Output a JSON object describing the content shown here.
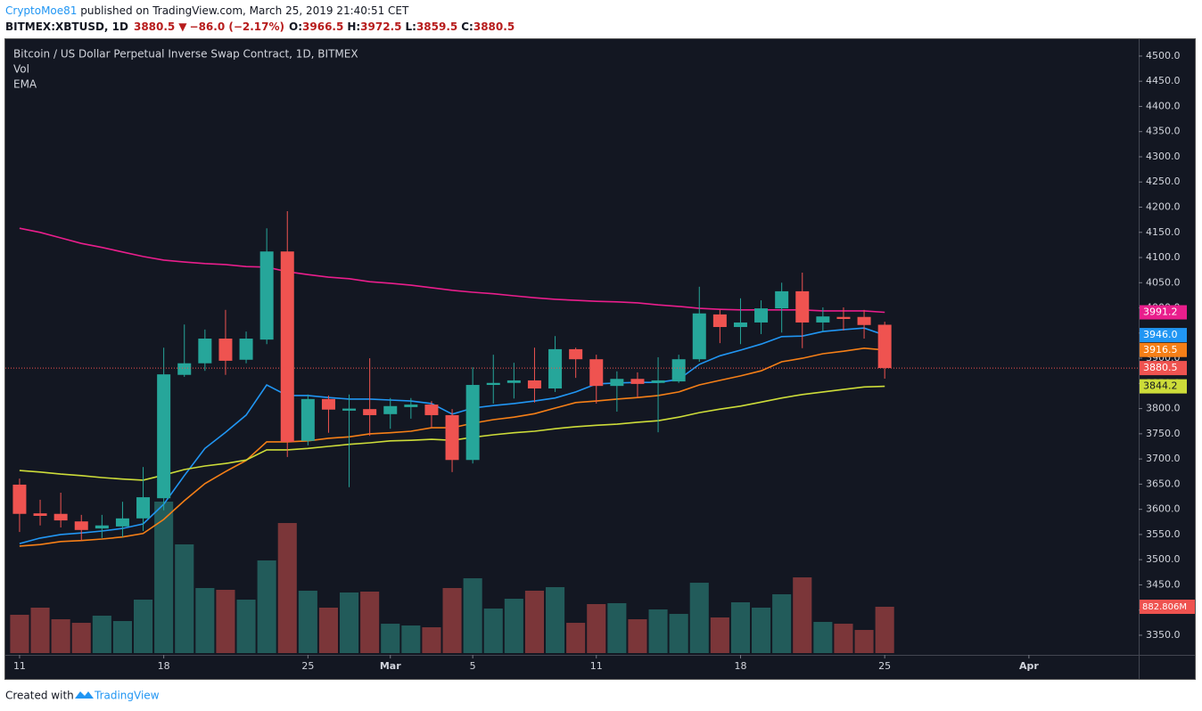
{
  "header": {
    "user": "CryptoMoe81",
    "published": " published on TradingView.com, March 25, 2019 21:40:51 CET",
    "symbol": "BITMEX:XBTUSD, 1D",
    "change": "−86.0 (−2.17%)",
    "o_label": "O:",
    "h_label": "H:",
    "l_label": "L:",
    "c_label": "C:"
  },
  "footer": {
    "created": "Created with",
    "brand": "TradingView"
  },
  "chart_data": {
    "type": "candlestick",
    "title": "Bitcoin / US Dollar Perpetual Inverse Swap Contract, 1D, BITMEX",
    "volume_label": "Vol",
    "ema_label": "EMA",
    "up_color": "#26a69a",
    "down_color": "#ef5350",
    "volume_up_color": "#225b5a",
    "volume_down_color": "#7b3639",
    "open": [
      3649,
      3592,
      3591,
      3576,
      3562,
      3566,
      3582,
      3622,
      3867,
      3890,
      3939,
      3897,
      3937,
      4112,
      3736,
      3819,
      3796,
      3799,
      3789,
      3803,
      3808,
      3787,
      3698,
      3847,
      3851,
      3856,
      3840,
      3918,
      3898,
      3845,
      3859,
      3851,
      3854,
      3898,
      3987,
      3962,
      3971,
      3999,
      4033,
      3971,
      3982,
      3982,
      3966.5
    ],
    "high": [
      3661,
      3619,
      3633,
      3589,
      3589,
      3615,
      3684,
      3921,
      3967,
      3957,
      3996,
      3953,
      4158,
      4192,
      3828,
      3826,
      3828,
      3900,
      3821,
      3821,
      3815,
      3799,
      3882,
      3907,
      3891,
      3921,
      3944,
      3921,
      3907,
      3874,
      3872,
      3902,
      3907,
      4042,
      3996,
      4019,
      4015,
      4050,
      4070,
      4001,
      4001,
      3996,
      3972.5
    ],
    "low": [
      3555,
      3568,
      3564,
      3538,
      3543,
      3545,
      3557,
      3598,
      3863,
      3875,
      3867,
      3890,
      3928,
      3704,
      3727,
      3752,
      3644,
      3746,
      3760,
      3780,
      3762,
      3674,
      3691,
      3810,
      3820,
      3812,
      3833,
      3861,
      3810,
      3794,
      3822,
      3753,
      3851,
      3893,
      3930,
      3928,
      3948,
      3951,
      3920,
      3953,
      3955,
      3939,
      3859.5
    ],
    "close": [
      3591,
      3587,
      3578,
      3559,
      3568,
      3582,
      3624,
      3868,
      3890,
      3939,
      3895,
      3939,
      4112,
      3734,
      3819,
      3798,
      3800,
      3787,
      3805,
      3808,
      3787,
      3698,
      3847,
      3851,
      3856,
      3840,
      3918,
      3898,
      3845,
      3859,
      3849,
      3856,
      3898,
      3989,
      3962,
      3971,
      3999,
      4033,
      3971,
      3983,
      3978,
      3966,
      3880.5
    ],
    "volume": [
      730,
      866,
      645,
      577,
      713,
      611,
      1019,
      2887,
      2072,
      1240,
      1206,
      1019,
      1766,
      2479,
      1189,
      866,
      1155,
      1172,
      560,
      526,
      492,
      1240,
      1426,
      849,
      1036,
      1189,
      1257,
      577,
      934,
      951,
      645,
      832,
      747,
      1341,
      679,
      968,
      866,
      1121,
      1443,
      594,
      560,
      441,
      882.806
    ],
    "volume_value_labels": [
      null,
      null,
      null,
      null,
      null,
      null,
      null,
      null,
      null,
      null,
      null,
      null,
      null,
      null,
      null,
      null,
      null,
      null,
      null,
      null,
      null,
      null,
      null,
      null,
      null,
      null,
      null,
      null,
      null,
      null,
      null,
      null,
      null,
      null,
      null,
      null,
      null,
      null,
      null,
      null,
      null,
      null,
      "882.806M"
    ],
    "ema_series": [
      {
        "color": "#e91e8c",
        "values": [
          4158,
          4150,
          4139,
          4128,
          4120,
          4111,
          4102,
          4095,
          4091,
          4088,
          4086,
          4082,
          4081,
          4072,
          4066,
          4061,
          4058,
          4052,
          4049,
          4045,
          4040,
          4035,
          4031,
          4028,
          4024,
          4020,
          4017,
          4015,
          4013,
          4012,
          4010,
          4006,
          4003,
          3999,
          3997,
          3996,
          3996,
          3996,
          3996,
          3994,
          3994,
          3994,
          3991.2
        ]
      },
      {
        "color": "#2196f3",
        "values": [
          3532,
          3543,
          3550,
          3553,
          3557,
          3562,
          3571,
          3610,
          3667,
          3721,
          3753,
          3787,
          3847,
          3826,
          3826,
          3822,
          3819,
          3819,
          3817,
          3815,
          3810,
          3789,
          3801,
          3806,
          3810,
          3815,
          3821,
          3833,
          3849,
          3851,
          3852,
          3852,
          3858,
          3888,
          3905,
          3916,
          3928,
          3943,
          3944,
          3953,
          3957,
          3960,
          3946
        ],
        "last_label": "3946.0"
      },
      {
        "color": "#f57f17",
        "values": [
          3527,
          3530,
          3536,
          3538,
          3541,
          3545,
          3552,
          3580,
          3617,
          3651,
          3675,
          3697,
          3734,
          3734,
          3736,
          3741,
          3744,
          3750,
          3752,
          3755,
          3762,
          3762,
          3771,
          3778,
          3783,
          3790,
          3801,
          3812,
          3815,
          3819,
          3822,
          3826,
          3833,
          3847,
          3856,
          3865,
          3875,
          3893,
          3900,
          3909,
          3914,
          3920,
          3916.5
        ]
      },
      {
        "color": "#cddc39",
        "values": [
          3677,
          3674,
          3670,
          3667,
          3663,
          3660,
          3658,
          3668,
          3679,
          3686,
          3691,
          3698,
          3718,
          3718,
          3721,
          3725,
          3729,
          3732,
          3736,
          3737,
          3739,
          3737,
          3743,
          3748,
          3752,
          3755,
          3760,
          3764,
          3767,
          3769,
          3773,
          3776,
          3783,
          3792,
          3799,
          3805,
          3813,
          3821,
          3828,
          3833,
          3838,
          3843,
          3844.2
        ]
      }
    ],
    "xlim": [
      -0.69,
      54.33
    ],
    "xticks": [
      {
        "value": 0,
        "label": "11"
      },
      {
        "value": 7,
        "label": "18"
      },
      {
        "value": 14,
        "label": "25"
      },
      {
        "value": 18,
        "label": "Mar"
      },
      {
        "value": 22,
        "label": "5"
      },
      {
        "value": 28,
        "label": "11"
      },
      {
        "value": 35,
        "label": "18"
      },
      {
        "value": 42,
        "label": "25"
      },
      {
        "value": 49,
        "label": "Apr"
      }
    ],
    "ylim": [
      3311,
      4533.5
    ],
    "yticks": [
      {
        "value": 3350,
        "label": "3350.0"
      },
      {
        "value": 3400,
        "label": "3400.0"
      },
      {
        "value": 3450,
        "label": "3450.0"
      },
      {
        "value": 3500,
        "label": "3500.0"
      },
      {
        "value": 3550,
        "label": "3550.0"
      },
      {
        "value": 3600,
        "label": "3600.0"
      },
      {
        "value": 3650,
        "label": "3650.0"
      },
      {
        "value": 3700,
        "label": "3700.0"
      },
      {
        "value": 3750,
        "label": "3750.0"
      },
      {
        "value": 3800,
        "label": "3800.0"
      },
      {
        "value": 3850,
        "label": "3850.0"
      },
      {
        "value": 3900,
        "label": "3900.0"
      },
      {
        "value": 3950,
        "label": "3950.0"
      },
      {
        "value": 4000,
        "label": "4000.0"
      },
      {
        "value": 4050,
        "label": "4050.0"
      },
      {
        "value": 4100,
        "label": "4100.0"
      },
      {
        "value": 4150,
        "label": "4150.0"
      },
      {
        "value": 4200,
        "label": "4200.0"
      },
      {
        "value": 4250,
        "label": "4250.0"
      },
      {
        "value": 4300,
        "label": "4300.0"
      },
      {
        "value": 4350,
        "label": "4350.0"
      },
      {
        "value": 4400,
        "label": "4400.0"
      },
      {
        "value": 4450,
        "label": "4450.0"
      },
      {
        "value": 4500,
        "label": "4500.0"
      }
    ]
  }
}
